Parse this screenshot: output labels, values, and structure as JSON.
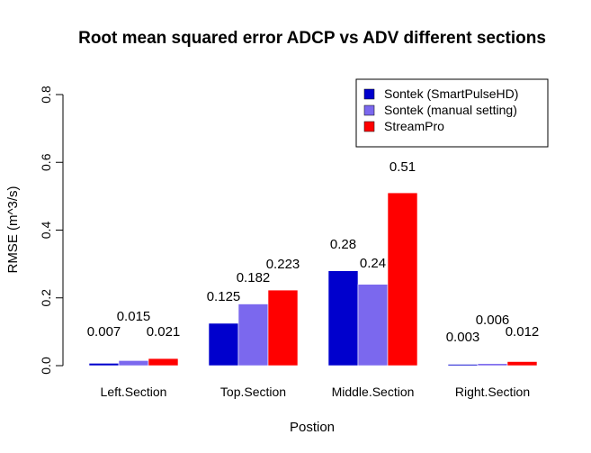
{
  "chart_data": {
    "type": "bar",
    "title": "Root mean squared error ADCP vs ADV different sections",
    "xlabel": "Postion",
    "ylabel": "RMSE (m^3/s)",
    "ylim": [
      0,
      0.8
    ],
    "yticks": [
      0.0,
      0.2,
      0.4,
      0.6,
      0.8
    ],
    "ytick_labels": [
      "0.0",
      "0.2",
      "0.4",
      "0.6",
      "0.8"
    ],
    "categories": [
      "Left.Section",
      "Top.Section",
      "Middle.Section",
      "Right.Section"
    ],
    "series": [
      {
        "name": "Sontek (SmartPulseHD)",
        "color": "#0000CD",
        "values": [
          0.007,
          0.125,
          0.28,
          0.003
        ],
        "labels": [
          "0.007",
          "0.125",
          "0.28",
          "0.003"
        ]
      },
      {
        "name": "Sontek (manual setting)",
        "color": "#7B68EE",
        "values": [
          0.015,
          0.182,
          0.24,
          0.006
        ],
        "labels": [
          "0.015",
          "0.182",
          "0.24",
          "0.006"
        ]
      },
      {
        "name": "StreamPro",
        "color": "#FF0000",
        "values": [
          0.021,
          0.223,
          0.51,
          0.012
        ],
        "labels": [
          "0.021",
          "0.223",
          "0.51",
          "0.012"
        ]
      }
    ],
    "legend_position": "top-right",
    "grid": false
  }
}
